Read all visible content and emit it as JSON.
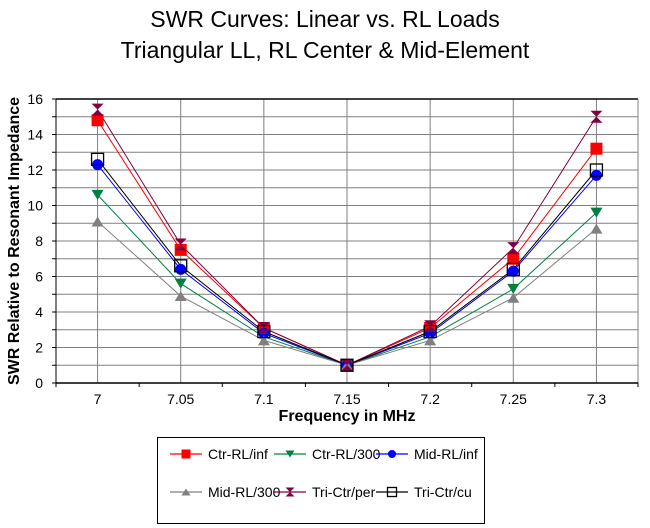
{
  "chart_data": {
    "type": "line",
    "title": "SWR Curves:  Linear vs. RL Loads",
    "subtitle": "Triangular LL, RL Center & Mid-Element",
    "xlabel": "Frequency in MHz",
    "ylabel": "SWR Relative to Resonant Impedance",
    "x": [
      7,
      7.05,
      7.1,
      7.15,
      7.2,
      7.25,
      7.3
    ],
    "x_tick_labels": [
      "7",
      "7.05",
      "7.1",
      "7.15",
      "7.2",
      "7.25",
      "7.3"
    ],
    "ylim": [
      0,
      16
    ],
    "y_ticks": [
      0,
      2,
      4,
      6,
      8,
      10,
      12,
      14,
      16
    ],
    "grid": true,
    "legend_position": "bottom",
    "series": [
      {
        "name": "Ctr-RL/inf",
        "color": "#ff0000",
        "marker": "square",
        "values": [
          14.8,
          7.5,
          3.1,
          1.0,
          3.1,
          7.0,
          13.2
        ]
      },
      {
        "name": "Ctr-RL/300",
        "color": "#008040",
        "marker": "triangle-down",
        "values": [
          10.6,
          5.6,
          2.6,
          1.0,
          2.6,
          5.3,
          9.6
        ]
      },
      {
        "name": "Mid-RL/inf",
        "color": "#0000ff",
        "marker": "circle",
        "values": [
          12.3,
          6.4,
          2.8,
          1.0,
          2.8,
          6.3,
          11.7
        ]
      },
      {
        "name": "Mid-RL/300",
        "color": "#808080",
        "marker": "triangle-up",
        "values": [
          9.1,
          4.9,
          2.4,
          1.0,
          2.4,
          4.8,
          8.7
        ]
      },
      {
        "name": "Tri-Ctr/per",
        "color": "#800040",
        "marker": "hourglass",
        "values": [
          15.4,
          7.8,
          3.1,
          1.0,
          3.2,
          7.6,
          15.0
        ]
      },
      {
        "name": "Tri-Ctr/cu",
        "color": "#000000",
        "marker": "open-square",
        "values": [
          12.6,
          6.6,
          2.9,
          1.0,
          2.9,
          6.4,
          12.0
        ]
      }
    ]
  }
}
